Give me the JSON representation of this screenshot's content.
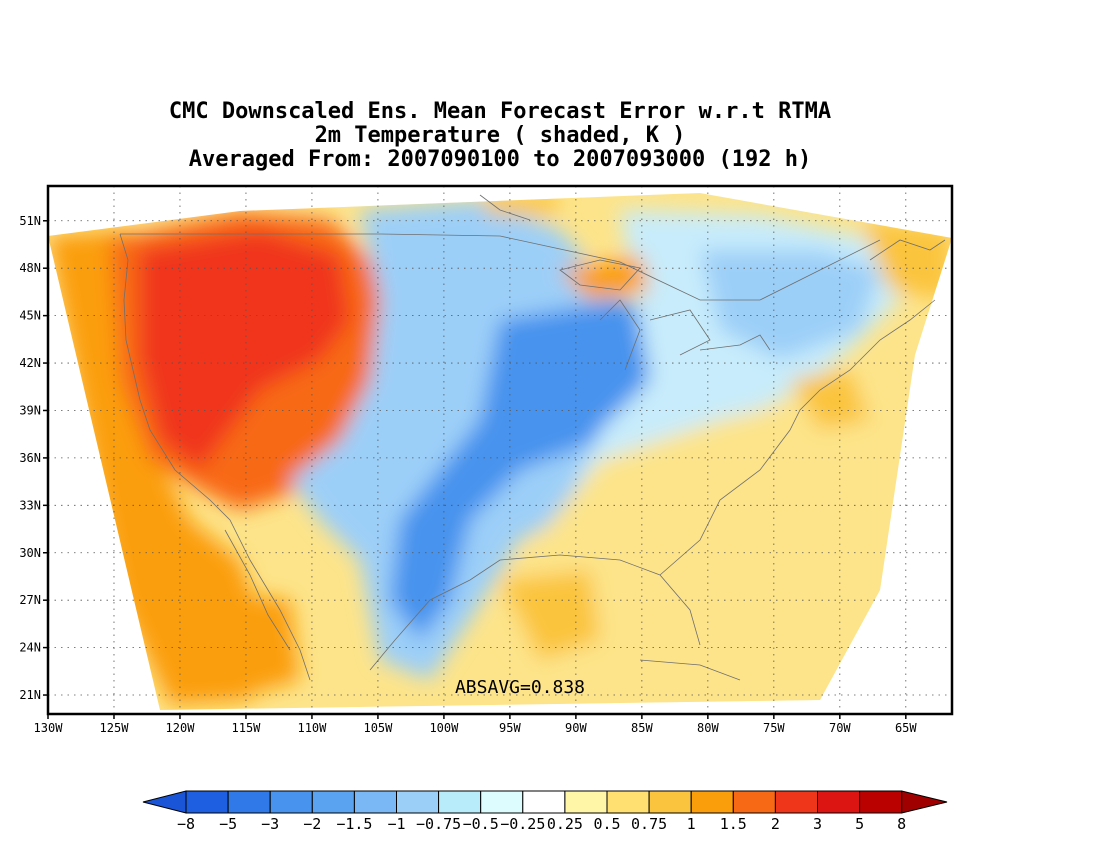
{
  "title": {
    "line1": "CMC Downscaled Ens. Mean Forecast Error w.r.t RTMA",
    "line2": "2m Temperature ( shaded, K )",
    "line3": "Averaged From: 2007090100 to 2007093000 (192 h)"
  },
  "annotation": "ABSAVG=0.838",
  "map": {
    "lon_range": [
      -130,
      -61.5
    ],
    "lat_range": [
      19.8,
      53.2
    ],
    "lon_ticks": [
      "130W",
      "125W",
      "120W",
      "115W",
      "110W",
      "105W",
      "100W",
      "95W",
      "90W",
      "85W",
      "80W",
      "75W",
      "70W",
      "65W"
    ],
    "lat_ticks": [
      "51N",
      "48N",
      "45N",
      "42N",
      "39N",
      "36N",
      "33N",
      "30N",
      "27N",
      "24N",
      "21N"
    ],
    "grid": "dotted",
    "regions": [
      {
        "name": "northwest",
        "level": "2 to 3",
        "color": "#f0501e"
      },
      {
        "name": "pacific ocean",
        "level": "0.75 to 1.5",
        "color": "#f9a31a"
      },
      {
        "name": "great plains",
        "level": "-1 to -2",
        "color": "#7eb8f4"
      },
      {
        "name": "midwest",
        "level": "-2 to -3",
        "color": "#4797ec"
      },
      {
        "name": "southeast",
        "level": "0.25 to 0.75",
        "color": "#fde48a"
      },
      {
        "name": "northeast",
        "level": "-0.25 to -1",
        "color": "#c8ecfb"
      }
    ]
  },
  "colorbar": {
    "colors": [
      "#1d5fe0",
      "#2f7ae8",
      "#4793ee",
      "#5aa3f0",
      "#7ab8f5",
      "#9ccff8",
      "#b9ecfb",
      "#ddfcfe",
      "#ffffff",
      "#fff6a8",
      "#ffe070",
      "#fbc43e",
      "#fb9e0c",
      "#f86916",
      "#f0361a",
      "#dd1512",
      "#bb0000"
    ],
    "labels": [
      "−8",
      "−5",
      "−3",
      "−2",
      "−1.5",
      "−1",
      "−0.75",
      "−0.5",
      "−0.25",
      "0.25",
      "0.5",
      "0.75",
      "1",
      "1.5",
      "2",
      "3",
      "5",
      "8"
    ],
    "left_arrow_color": "#1a55d8",
    "right_arrow_color": "#a00000"
  }
}
